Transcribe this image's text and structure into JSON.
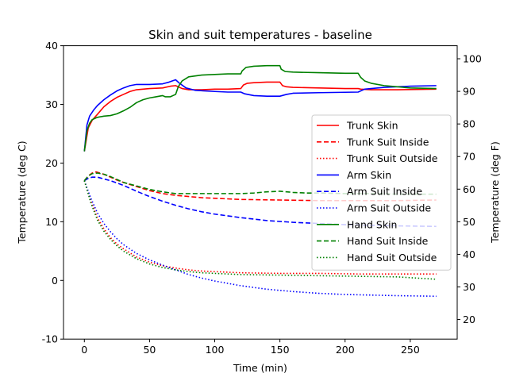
{
  "chart_data": {
    "type": "line",
    "title": "Skin and suit temperatures - baseline",
    "xlabel": "Time (min)",
    "ylabel": "Temperature (deg C)",
    "ylabel_right": "Temperature (deg F)",
    "xlim": [
      -16,
      286
    ],
    "ylim": [
      -10,
      40
    ],
    "xticks": [
      0,
      50,
      100,
      150,
      200,
      250
    ],
    "yticks": [
      -10,
      0,
      10,
      20,
      30,
      40
    ],
    "yticks_right": [
      20,
      30,
      40,
      50,
      60,
      70,
      80,
      90,
      100
    ],
    "grid": false,
    "legend_position": "right",
    "series": [
      {
        "name": "Trunk Skin",
        "color": "#ff0000",
        "style": "solid",
        "x": [
          0,
          3,
          6,
          10,
          15,
          20,
          25,
          30,
          35,
          40,
          50,
          60,
          66,
          70,
          75,
          80,
          90,
          100,
          110,
          120,
          122,
          125,
          130,
          140,
          150,
          152,
          155,
          160,
          180,
          200,
          210,
          212,
          220,
          240,
          270
        ],
        "y": [
          22,
          26,
          27.3,
          28.3,
          29.6,
          30.5,
          31.2,
          31.7,
          32.2,
          32.5,
          32.7,
          32.8,
          33.1,
          33.2,
          32.7,
          32.5,
          32.5,
          32.6,
          32.6,
          32.7,
          33.3,
          33.6,
          33.7,
          33.8,
          33.8,
          33.2,
          33.0,
          32.9,
          32.8,
          32.7,
          32.7,
          32.6,
          32.5,
          32.5,
          32.6
        ]
      },
      {
        "name": "Trunk Suit Inside",
        "color": "#ff0000",
        "style": "dashed",
        "x": [
          0,
          3,
          6,
          9,
          12,
          16,
          20,
          25,
          30,
          40,
          50,
          60,
          70,
          80,
          90,
          100,
          120,
          150,
          180,
          210,
          240,
          270
        ],
        "y": [
          17,
          17.8,
          18.3,
          18.5,
          18.3,
          18.0,
          17.6,
          17.1,
          16.7,
          16.0,
          15.3,
          14.8,
          14.5,
          14.3,
          14.1,
          14.0,
          13.8,
          13.7,
          13.6,
          13.6,
          13.6,
          13.7
        ]
      },
      {
        "name": "Trunk Suit Outside",
        "color": "#ff0000",
        "style": "dotted",
        "x": [
          0,
          5,
          10,
          15,
          20,
          25,
          30,
          40,
          50,
          60,
          70,
          80,
          90,
          100,
          120,
          150,
          180,
          210,
          240,
          270
        ],
        "y": [
          17,
          13.5,
          10.7,
          8.8,
          7.3,
          6.2,
          5.4,
          4.0,
          3.1,
          2.5,
          2.1,
          1.8,
          1.6,
          1.5,
          1.3,
          1.2,
          1.2,
          1.1,
          1.1,
          1.1
        ]
      },
      {
        "name": "Arm Skin",
        "color": "#0000ff",
        "style": "solid",
        "x": [
          0,
          2,
          4,
          7,
          10,
          15,
          20,
          25,
          30,
          35,
          40,
          50,
          60,
          65,
          70,
          73,
          78,
          85,
          100,
          110,
          120,
          123,
          130,
          140,
          150,
          155,
          160,
          180,
          210,
          215,
          230,
          250,
          270
        ],
        "y": [
          22,
          26.5,
          28,
          29,
          29.8,
          30.8,
          31.6,
          32.3,
          32.8,
          33.2,
          33.4,
          33.4,
          33.5,
          33.8,
          34.2,
          33.6,
          32.8,
          32.4,
          32.2,
          32.1,
          32.1,
          31.8,
          31.5,
          31.4,
          31.4,
          31.7,
          31.9,
          32.0,
          32.1,
          32.6,
          32.9,
          33.1,
          33.2
        ]
      },
      {
        "name": "Arm Suit Inside",
        "color": "#0000ff",
        "style": "dashed",
        "x": [
          0,
          3,
          6,
          10,
          15,
          20,
          25,
          30,
          40,
          50,
          60,
          70,
          80,
          90,
          100,
          120,
          140,
          160,
          180,
          200,
          220,
          240,
          270
        ],
        "y": [
          17,
          17.4,
          17.6,
          17.6,
          17.3,
          17.0,
          16.6,
          16.2,
          15.2,
          14.3,
          13.5,
          12.8,
          12.2,
          11.7,
          11.3,
          10.7,
          10.2,
          9.9,
          9.7,
          9.5,
          9.4,
          9.3,
          9.2
        ]
      },
      {
        "name": "Arm Suit Outside",
        "color": "#0000ff",
        "style": "dotted",
        "x": [
          0,
          5,
          10,
          15,
          20,
          25,
          30,
          40,
          50,
          60,
          70,
          80,
          90,
          100,
          120,
          140,
          160,
          180,
          200,
          220,
          240,
          270
        ],
        "y": [
          17,
          14.0,
          11.5,
          9.7,
          8.3,
          7.1,
          6.1,
          4.6,
          3.5,
          2.6,
          1.8,
          1.0,
          0.4,
          -0.1,
          -0.9,
          -1.5,
          -1.9,
          -2.2,
          -2.4,
          -2.5,
          -2.6,
          -2.7
        ]
      },
      {
        "name": "Hand Skin",
        "color": "#008000",
        "style": "solid",
        "x": [
          0,
          2,
          4,
          6,
          10,
          15,
          20,
          25,
          30,
          35,
          40,
          45,
          50,
          55,
          60,
          62,
          66,
          70,
          72,
          75,
          80,
          90,
          100,
          110,
          120,
          121,
          124,
          130,
          140,
          150,
          151,
          154,
          160,
          180,
          200,
          210,
          212,
          215,
          220,
          230,
          240,
          250,
          270
        ],
        "y": [
          22,
          25.5,
          26.8,
          27.4,
          27.8,
          28.0,
          28.1,
          28.4,
          28.9,
          29.5,
          30.3,
          30.8,
          31.1,
          31.3,
          31.5,
          31.3,
          31.3,
          31.7,
          33.0,
          34.0,
          34.7,
          35.0,
          35.1,
          35.2,
          35.2,
          35.7,
          36.3,
          36.5,
          36.6,
          36.6,
          36.0,
          35.6,
          35.5,
          35.4,
          35.3,
          35.3,
          34.6,
          34.0,
          33.6,
          33.2,
          33.0,
          32.8,
          32.7
        ]
      },
      {
        "name": "Hand Suit Inside",
        "color": "#008000",
        "style": "dashed",
        "x": [
          0,
          3,
          6,
          10,
          15,
          20,
          25,
          30,
          40,
          50,
          60,
          70,
          80,
          90,
          100,
          110,
          120,
          130,
          140,
          150,
          160,
          170,
          180,
          200,
          220,
          240,
          270
        ],
        "y": [
          17,
          17.8,
          18.2,
          18.3,
          18.1,
          17.7,
          17.2,
          16.7,
          16.1,
          15.5,
          15.1,
          14.8,
          14.8,
          14.8,
          14.8,
          14.8,
          14.8,
          14.9,
          15.1,
          15.2,
          15.0,
          14.9,
          14.9,
          14.8,
          14.8,
          14.7,
          14.7
        ]
      },
      {
        "name": "Hand Suit Outside",
        "color": "#008000",
        "style": "dotted",
        "x": [
          0,
          5,
          10,
          15,
          20,
          25,
          30,
          40,
          50,
          60,
          70,
          80,
          90,
          100,
          120,
          150,
          180,
          210,
          240,
          270
        ],
        "y": [
          17,
          13.2,
          10.3,
          8.4,
          7.0,
          5.9,
          5.0,
          3.7,
          2.8,
          2.2,
          1.8,
          1.5,
          1.3,
          1.2,
          1.0,
          0.9,
          0.8,
          0.7,
          0.6,
          0.2
        ]
      }
    ]
  }
}
